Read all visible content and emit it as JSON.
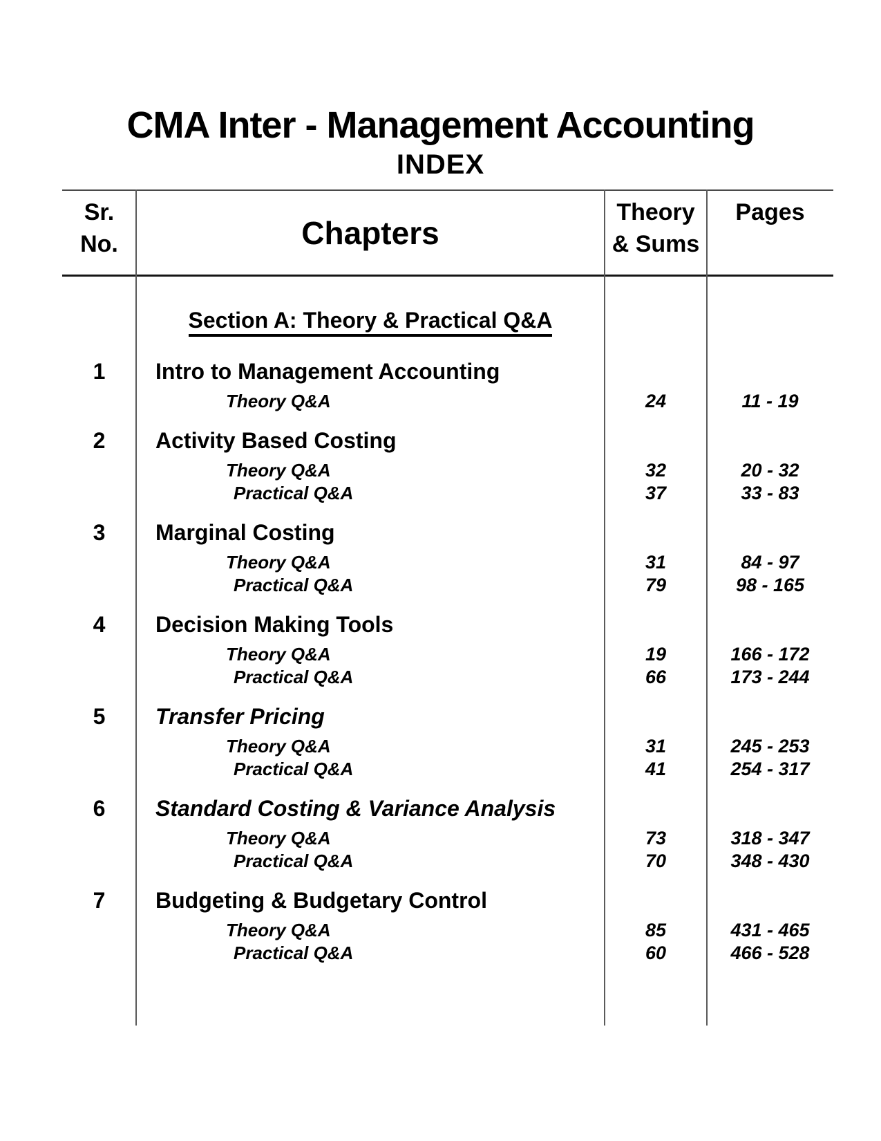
{
  "page": {
    "title": "CMA Inter - Management Accounting",
    "subtitle": "INDEX"
  },
  "colors": {
    "text": "#000000",
    "table_lines": "#4a4a4a"
  },
  "table": {
    "header": {
      "sr_line1": "Sr.",
      "sr_line2": "No.",
      "chapters": "Chapters",
      "theory_line1": "Theory",
      "theory_line2": "& Sums",
      "pages": "Pages"
    },
    "section_heading": "Section A: Theory & Practical Q&A",
    "chapters": [
      {
        "no": "1",
        "title": "Intro to Management Accounting",
        "rows": [
          {
            "label": "Theory Q&A",
            "count": "24",
            "pages": "11 - 19"
          }
        ]
      },
      {
        "no": "2",
        "title": "Activity Based Costing",
        "rows": [
          {
            "label": "Theory Q&A",
            "count": "32",
            "pages": "20 - 32"
          },
          {
            "label": "Practical Q&A",
            "count": "37",
            "pages": "33 - 83"
          }
        ]
      },
      {
        "no": "3",
        "title": "Marginal Costing",
        "rows": [
          {
            "label": "Theory Q&A",
            "count": "31",
            "pages": "84 - 97"
          },
          {
            "label": "Practical Q&A",
            "count": "79",
            "pages": "98 - 165"
          }
        ]
      },
      {
        "no": "4",
        "title": "Decision Making Tools",
        "rows": [
          {
            "label": "Theory Q&A",
            "count": "19",
            "pages": "166 - 172"
          },
          {
            "label": "Practical Q&A",
            "count": "66",
            "pages": "173 - 244"
          }
        ]
      },
      {
        "no": "5",
        "title": "Transfer Pricing",
        "rows": [
          {
            "label": "Theory Q&A",
            "count": "31",
            "pages": "245 - 253"
          },
          {
            "label": "Practical Q&A",
            "count": "41",
            "pages": "254 - 317"
          }
        ]
      },
      {
        "no": "6",
        "title": "Standard Costing & Variance Analysis",
        "rows": [
          {
            "label": "Theory Q&A",
            "count": "73",
            "pages": "318 - 347"
          },
          {
            "label": "Practical Q&A",
            "count": "70",
            "pages": "348 - 430"
          }
        ]
      },
      {
        "no": "7",
        "title": "Budgeting & Budgetary Control",
        "rows": [
          {
            "label": "Theory Q&A",
            "count": "85",
            "pages": "431 - 465"
          },
          {
            "label": "Practical Q&A",
            "count": "60",
            "pages": "466 - 528"
          }
        ]
      }
    ]
  }
}
